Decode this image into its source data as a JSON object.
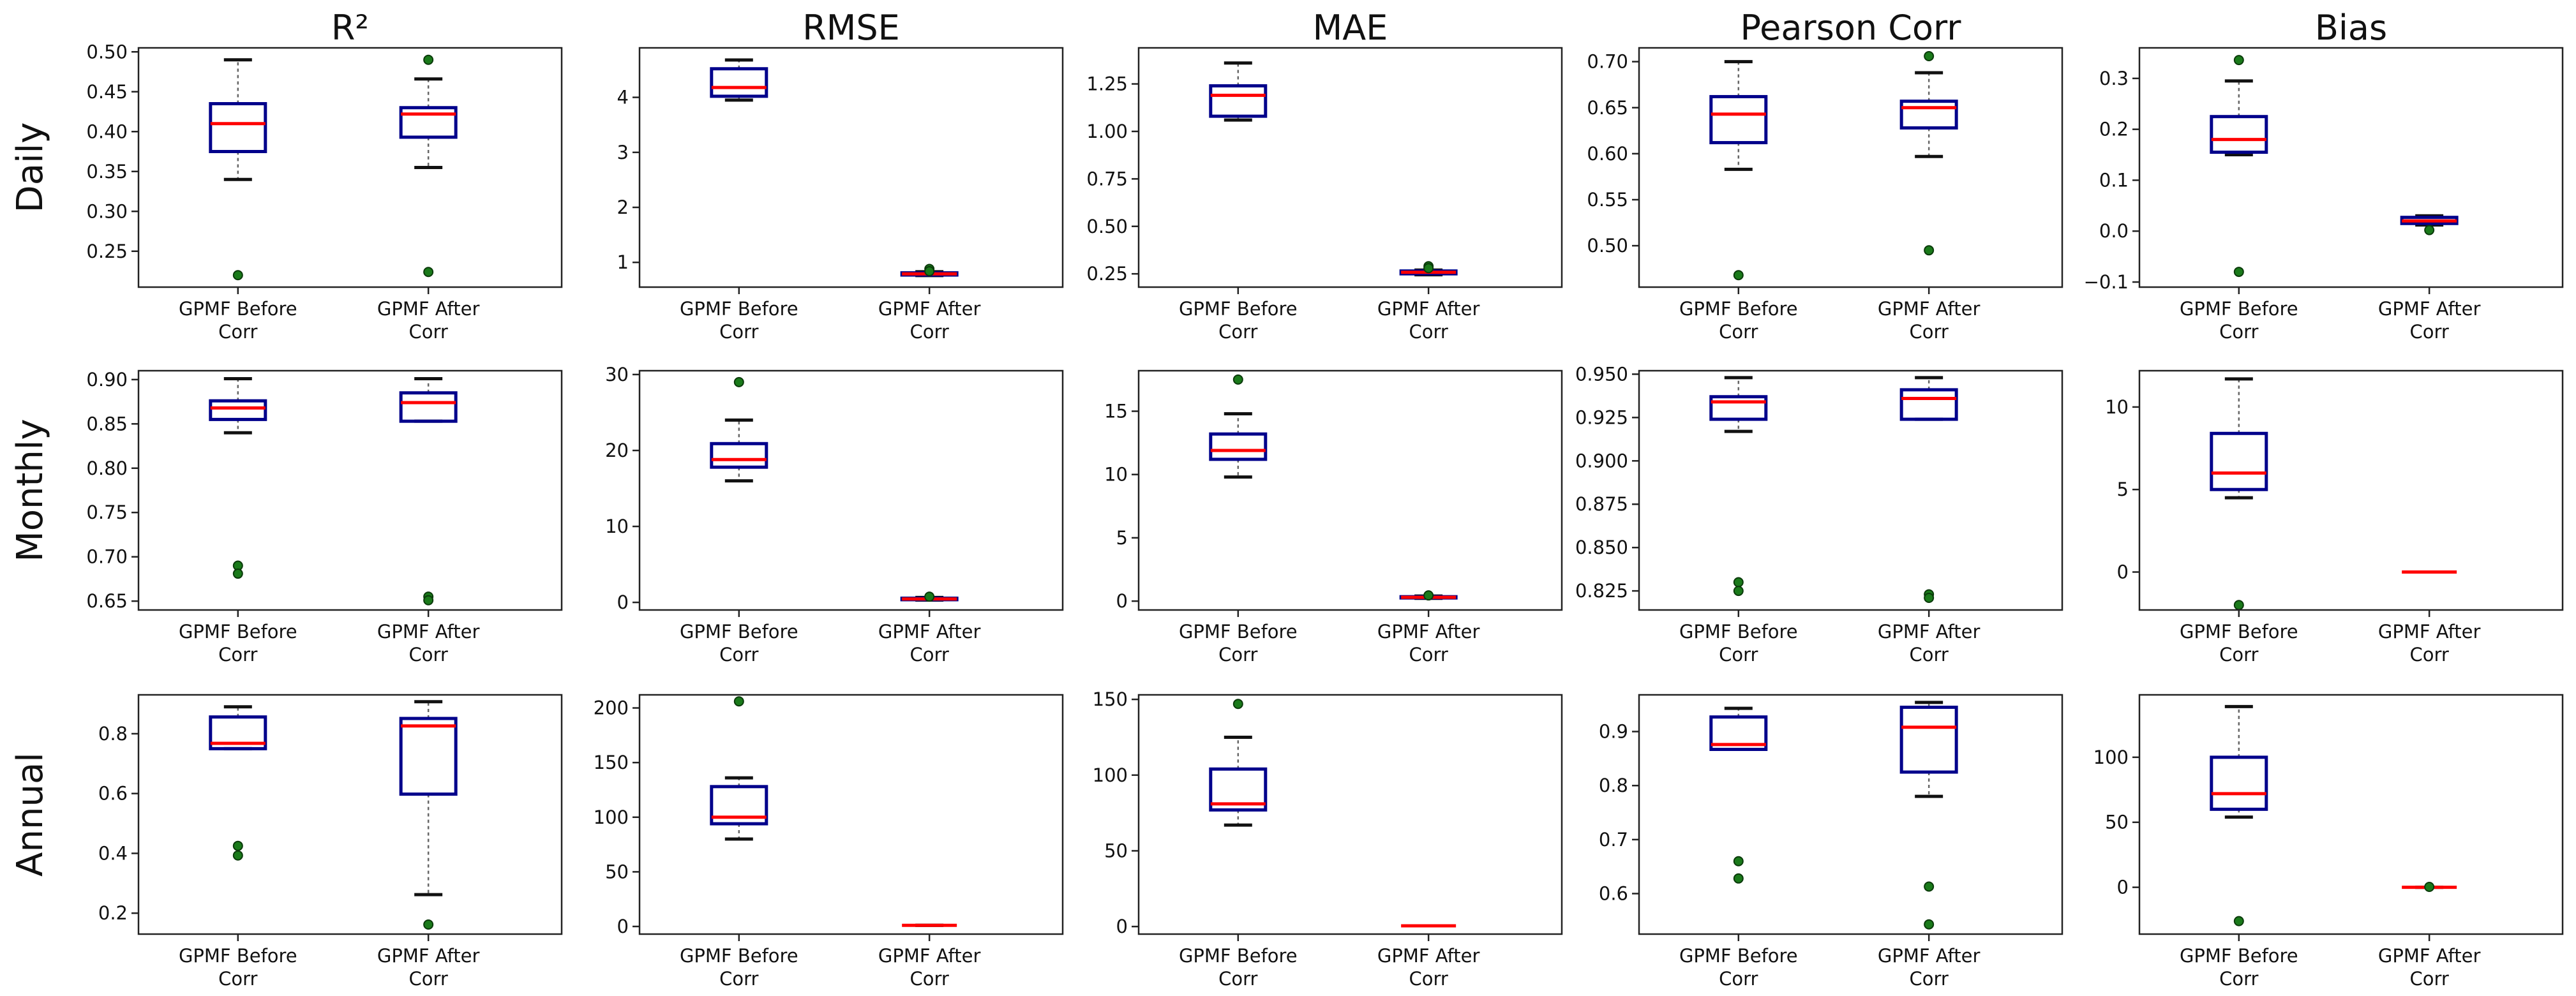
{
  "figure": {
    "colors": {
      "box": "#00008b",
      "median": "#ff0000",
      "outlier": "#1a7a1a",
      "whisker": "#666666",
      "cap": "#111111"
    }
  },
  "chart_data": {
    "type": "box",
    "columns": [
      "R²",
      "RMSE",
      "MAE",
      "Pearson Corr",
      "Bias"
    ],
    "rows": [
      "Daily",
      "Monthly",
      "Annual"
    ],
    "categories": [
      "GPMF Before\nCorr",
      "GPMF After\nCorr"
    ],
    "panels": [
      {
        "row": "Daily",
        "column": "R²",
        "ylim": [
          0.205,
          0.505
        ],
        "yticks": [
          "0.25",
          "0.30",
          "0.35",
          "0.40",
          "0.45",
          "0.50"
        ],
        "ytick_values": [
          0.25,
          0.3,
          0.35,
          0.4,
          0.45,
          0.5
        ],
        "boxes": [
          {
            "q1": 0.375,
            "median": 0.41,
            "q3": 0.435,
            "whislo": 0.34,
            "whishi": 0.49,
            "fliers": [
              0.22
            ]
          },
          {
            "q1": 0.393,
            "median": 0.422,
            "q3": 0.43,
            "whislo": 0.355,
            "whishi": 0.466,
            "fliers": [
              0.224,
              0.49
            ]
          }
        ]
      },
      {
        "row": "Daily",
        "column": "RMSE",
        "ylim": [
          0.55,
          4.9
        ],
        "yticks": [
          "1",
          "2",
          "3",
          "4"
        ],
        "ytick_values": [
          1,
          2,
          3,
          4
        ],
        "boxes": [
          {
            "q1": 4.02,
            "median": 4.18,
            "q3": 4.52,
            "whislo": 3.95,
            "whishi": 4.68,
            "fliers": []
          },
          {
            "q1": 0.77,
            "median": 0.79,
            "q3": 0.81,
            "whislo": 0.76,
            "whishi": 0.83,
            "fliers": [
              0.88,
              0.84
            ]
          }
        ]
      },
      {
        "row": "Daily",
        "column": "MAE",
        "ylim": [
          0.18,
          1.44
        ],
        "yticks": [
          "0.25",
          "0.50",
          "0.75",
          "1.00",
          "1.25"
        ],
        "ytick_values": [
          0.25,
          0.5,
          0.75,
          1.0,
          1.25
        ],
        "boxes": [
          {
            "q1": 1.08,
            "median": 1.19,
            "q3": 1.24,
            "whislo": 1.06,
            "whishi": 1.36,
            "fliers": []
          },
          {
            "q1": 0.25,
            "median": 0.258,
            "q3": 0.265,
            "whislo": 0.245,
            "whishi": 0.27,
            "fliers": [
              0.29,
              0.28
            ]
          }
        ]
      },
      {
        "row": "Daily",
        "column": "Pearson Corr",
        "ylim": [
          0.455,
          0.715
        ],
        "yticks": [
          "0.50",
          "0.55",
          "0.60",
          "0.65",
          "0.70"
        ],
        "ytick_values": [
          0.5,
          0.55,
          0.6,
          0.65,
          0.7
        ],
        "boxes": [
          {
            "q1": 0.612,
            "median": 0.643,
            "q3": 0.662,
            "whislo": 0.583,
            "whishi": 0.7,
            "fliers": [
              0.468
            ]
          },
          {
            "q1": 0.628,
            "median": 0.65,
            "q3": 0.657,
            "whislo": 0.597,
            "whishi": 0.688,
            "fliers": [
              0.495,
              0.706
            ]
          }
        ]
      },
      {
        "row": "Daily",
        "column": "Bias",
        "ylim": [
          -0.11,
          0.36
        ],
        "yticks": [
          "−0.1",
          "0.0",
          "0.1",
          "0.2",
          "0.3"
        ],
        "ytick_values": [
          -0.1,
          0.0,
          0.1,
          0.2,
          0.3
        ],
        "boxes": [
          {
            "q1": 0.155,
            "median": 0.18,
            "q3": 0.225,
            "whislo": 0.15,
            "whishi": 0.295,
            "fliers": [
              -0.08,
              0.336
            ]
          },
          {
            "q1": 0.015,
            "median": 0.02,
            "q3": 0.027,
            "whislo": 0.012,
            "whishi": 0.03,
            "fliers": [
              0.002
            ]
          }
        ]
      },
      {
        "row": "Monthly",
        "column": "R²",
        "ylim": [
          0.64,
          0.91
        ],
        "yticks": [
          "0.65",
          "0.70",
          "0.75",
          "0.80",
          "0.85",
          "0.90"
        ],
        "ytick_values": [
          0.65,
          0.7,
          0.75,
          0.8,
          0.85,
          0.9
        ],
        "boxes": [
          {
            "q1": 0.855,
            "median": 0.868,
            "q3": 0.876,
            "whislo": 0.84,
            "whishi": 0.901,
            "fliers": [
              0.69,
              0.681
            ]
          },
          {
            "q1": 0.853,
            "median": 0.874,
            "q3": 0.885,
            "whislo": 0.853,
            "whishi": 0.901,
            "fliers": [
              0.655,
              0.651
            ]
          }
        ]
      },
      {
        "row": "Monthly",
        "column": "RMSE",
        "ylim": [
          -1,
          30.5
        ],
        "yticks": [
          "0",
          "10",
          "20",
          "30"
        ],
        "ytick_values": [
          0,
          10,
          20,
          30
        ],
        "boxes": [
          {
            "q1": 17.8,
            "median": 18.8,
            "q3": 20.9,
            "whislo": 16.0,
            "whishi": 24.0,
            "fliers": [
              29.0
            ]
          },
          {
            "q1": 0.35,
            "median": 0.45,
            "q3": 0.55,
            "whislo": 0.3,
            "whishi": 0.65,
            "fliers": [
              0.75
            ]
          }
        ]
      },
      {
        "row": "Monthly",
        "column": "MAE",
        "ylim": [
          -0.7,
          18.2
        ],
        "yticks": [
          "0",
          "5",
          "10",
          "15"
        ],
        "ytick_values": [
          0,
          5,
          10,
          15
        ],
        "boxes": [
          {
            "q1": 11.2,
            "median": 11.9,
            "q3": 13.2,
            "whislo": 9.8,
            "whishi": 14.8,
            "fliers": [
              17.5
            ]
          },
          {
            "q1": 0.25,
            "median": 0.3,
            "q3": 0.35,
            "whislo": 0.22,
            "whishi": 0.4,
            "fliers": [
              0.45
            ]
          }
        ]
      },
      {
        "row": "Monthly",
        "column": "Pearson Corr",
        "ylim": [
          0.814,
          0.952
        ],
        "yticks": [
          "0.825",
          "0.850",
          "0.875",
          "0.900",
          "0.925",
          "0.950"
        ],
        "ytick_values": [
          0.825,
          0.85,
          0.875,
          0.9,
          0.925,
          0.95
        ],
        "boxes": [
          {
            "q1": 0.924,
            "median": 0.934,
            "q3": 0.937,
            "whislo": 0.917,
            "whishi": 0.948,
            "fliers": [
              0.83,
              0.825
            ]
          },
          {
            "q1": 0.924,
            "median": 0.936,
            "q3": 0.941,
            "whislo": 0.924,
            "whishi": 0.948,
            "fliers": [
              0.823,
              0.821
            ]
          }
        ]
      },
      {
        "row": "Monthly",
        "column": "Bias",
        "ylim": [
          -2.3,
          12.2
        ],
        "yticks": [
          "0",
          "5",
          "10"
        ],
        "ytick_values": [
          0,
          5,
          10
        ],
        "boxes": [
          {
            "q1": 5.0,
            "median": 6.0,
            "q3": 8.4,
            "whislo": 4.5,
            "whishi": 11.7,
            "fliers": [
              -2.0
            ]
          },
          {
            "q1": 0.0,
            "median": 0.0,
            "q3": 0.0,
            "whislo": 0.0,
            "whishi": 0.0,
            "fliers": []
          }
        ]
      },
      {
        "row": "Annual",
        "column": "R²",
        "ylim": [
          0.13,
          0.93
        ],
        "yticks": [
          "0.2",
          "0.4",
          "0.6",
          "0.8"
        ],
        "ytick_values": [
          0.2,
          0.4,
          0.6,
          0.8
        ],
        "boxes": [
          {
            "q1": 0.75,
            "median": 0.768,
            "q3": 0.856,
            "whislo": 0.75,
            "whishi": 0.89,
            "fliers": [
              0.425,
              0.393
            ]
          },
          {
            "q1": 0.598,
            "median": 0.826,
            "q3": 0.851,
            "whislo": 0.262,
            "whishi": 0.907,
            "fliers": [
              0.162
            ]
          }
        ]
      },
      {
        "row": "Annual",
        "column": "RMSE",
        "ylim": [
          -7,
          212
        ],
        "yticks": [
          "0",
          "50",
          "100",
          "150",
          "200"
        ],
        "ytick_values": [
          0,
          50,
          100,
          150,
          200
        ],
        "boxes": [
          {
            "q1": 94,
            "median": 100,
            "q3": 128,
            "whislo": 80,
            "whishi": 136,
            "fliers": [
              206
            ]
          },
          {
            "q1": 1,
            "median": 1,
            "q3": 1,
            "whislo": 1,
            "whishi": 1,
            "fliers": []
          }
        ]
      },
      {
        "row": "Annual",
        "column": "MAE",
        "ylim": [
          -5,
          153
        ],
        "yticks": [
          "0",
          "50",
          "100",
          "150"
        ],
        "ytick_values": [
          0,
          50,
          100,
          150
        ],
        "boxes": [
          {
            "q1": 77,
            "median": 81,
            "q3": 104,
            "whislo": 67,
            "whishi": 125,
            "fliers": [
              147
            ]
          },
          {
            "q1": 0.5,
            "median": 0.5,
            "q3": 0.5,
            "whislo": 0.5,
            "whishi": 0.5,
            "fliers": []
          }
        ]
      },
      {
        "row": "Annual",
        "column": "Pearson Corr",
        "ylim": [
          0.525,
          0.968
        ],
        "yticks": [
          "0.6",
          "0.7",
          "0.8",
          "0.9"
        ],
        "ytick_values": [
          0.6,
          0.7,
          0.8,
          0.9
        ],
        "boxes": [
          {
            "q1": 0.867,
            "median": 0.876,
            "q3": 0.927,
            "whislo": 0.867,
            "whishi": 0.943,
            "fliers": [
              0.66,
              0.628
            ]
          },
          {
            "q1": 0.825,
            "median": 0.908,
            "q3": 0.945,
            "whislo": 0.78,
            "whishi": 0.954,
            "fliers": [
              0.613,
              0.543
            ]
          }
        ]
      },
      {
        "row": "Annual",
        "column": "Bias",
        "ylim": [
          -36,
          148
        ],
        "yticks": [
          "0",
          "50",
          "100"
        ],
        "ytick_values": [
          0,
          50,
          100
        ],
        "boxes": [
          {
            "q1": 60,
            "median": 72,
            "q3": 100,
            "whislo": 54,
            "whishi": 139,
            "fliers": [
              -26
            ]
          },
          {
            "q1": 0,
            "median": 0,
            "q3": 0,
            "whislo": 0,
            "whishi": 0,
            "fliers": [
              0.3
            ]
          }
        ]
      }
    ]
  }
}
